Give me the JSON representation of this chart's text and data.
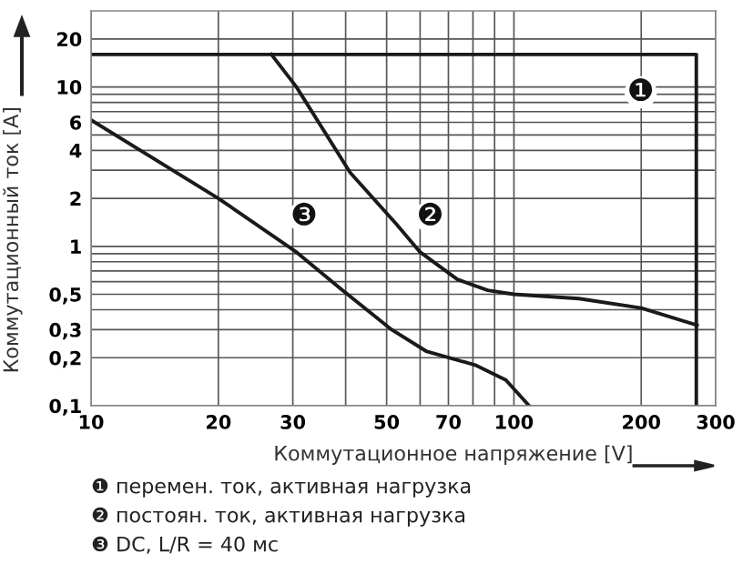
{
  "chart_data": {
    "type": "line",
    "xlabel": "Коммутационное напряжение [V]",
    "ylabel": "Коммутационный ток [A]",
    "log": "xy",
    "grid": true,
    "marker": "none",
    "line_style": "solid",
    "xlim": [
      10,
      300
    ],
    "ylim": [
      0.1,
      30
    ],
    "xticks": [
      10,
      20,
      30,
      {
        "value": 40,
        "label": null
      },
      50,
      {
        "value": 60,
        "label": null
      },
      70,
      {
        "value": 80,
        "label": null
      },
      {
        "value": 90,
        "label": null
      },
      100,
      200,
      300
    ],
    "yticks": [
      {
        "value": 0.1,
        "label": "0,1"
      },
      {
        "value": 0.2,
        "label": "0,2"
      },
      {
        "value": 0.3,
        "label": "0,3"
      },
      {
        "value": 0.4,
        "label": null
      },
      {
        "value": 0.5,
        "label": "0,5"
      },
      {
        "value": 0.6,
        "label": null
      },
      {
        "value": 0.7,
        "label": null
      },
      {
        "value": 0.8,
        "label": null
      },
      {
        "value": 0.9,
        "label": null
      },
      1,
      2,
      {
        "value": 3,
        "label": null
      },
      4,
      {
        "value": 5,
        "label": null
      },
      6,
      {
        "value": 7,
        "label": null
      },
      {
        "value": 8,
        "label": null
      },
      {
        "value": 9,
        "label": null
      },
      10,
      20
    ],
    "series": [
      {
        "name": "❶",
        "color": "#1a1a1a",
        "x": [
          10,
          270,
          270
        ],
        "values": [
          16,
          16,
          0.1
        ]
      },
      {
        "name": "❷",
        "color": "#1a1a1a",
        "x": [
          26.7,
          30.6,
          41,
          52.7,
          60,
          73.5,
          86.7,
          100,
          142.5,
          200,
          271
        ],
        "values": [
          16,
          10,
          2.9,
          1.38,
          0.92,
          0.62,
          0.53,
          0.5,
          0.47,
          0.41,
          0.32
        ]
      },
      {
        "name": "❸",
        "color": "#1a1a1a",
        "x": [
          10,
          20,
          30.6,
          39,
          51.4,
          62,
          81,
          95.7,
          108.6
        ],
        "values": [
          6.2,
          2.0,
          0.92,
          0.54,
          0.3,
          0.22,
          0.18,
          0.145,
          0.1
        ]
      }
    ],
    "annotations": [
      "❶ перемен. ток, активная нагрузка",
      "❷ постоян. ток, активная нагрузка",
      "❸ DC, L/R = 40 мс"
    ]
  }
}
